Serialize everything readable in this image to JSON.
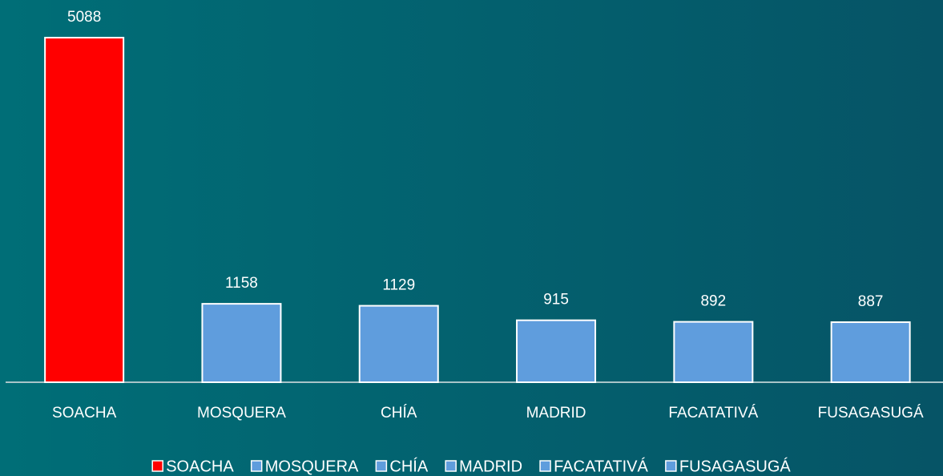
{
  "chart_data": {
    "type": "bar",
    "categories": [
      "SOACHA",
      "MOSQUERA",
      "CHÍA",
      "MADRID",
      "FACATATIVÁ",
      "FUSAGASUGÁ"
    ],
    "values": [
      5088,
      1158,
      1129,
      915,
      892,
      887
    ],
    "colors": [
      "#ff0000",
      "#5f9ddd",
      "#5f9ddd",
      "#5f9ddd",
      "#5f9ddd",
      "#5f9ddd"
    ],
    "ylim": [
      0,
      5200
    ],
    "legend": "bottom"
  }
}
